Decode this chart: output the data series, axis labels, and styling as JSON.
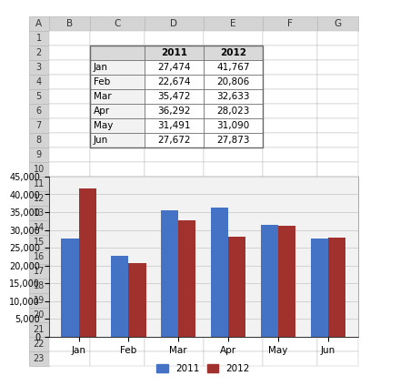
{
  "months": [
    "Jan",
    "Feb",
    "Mar",
    "Apr",
    "May",
    "Jun"
  ],
  "values_2011": [
    27474,
    22674,
    35472,
    36292,
    31491,
    27672
  ],
  "values_2012": [
    41767,
    20806,
    32633,
    28023,
    31090,
    27873
  ],
  "bar_color_2011": "#4472C4",
  "bar_color_2012": "#A0312D",
  "table_header_bg": "#D9D9D9",
  "table_border_color": "#808080",
  "grid_color": "#C0C0C0",
  "chart_bg": "#F2F2F2",
  "spreadsheet_bg": "#FFFFFF",
  "col_header_bg": "#D9D9D9",
  "row_header_bg": "#D9D9D9",
  "ylim": [
    0,
    45000
  ],
  "yticks": [
    0,
    5000,
    10000,
    15000,
    20000,
    25000,
    30000,
    35000,
    40000,
    45000
  ],
  "legend_labels": [
    "2011",
    "2012"
  ],
  "bar_width": 0.35,
  "col_labels": [
    "",
    "2011",
    "2012"
  ],
  "row_labels": [
    "A",
    "B",
    "C",
    "D",
    "E",
    "F",
    "G"
  ],
  "col_letters": [
    "A",
    "B",
    "C",
    "D",
    "E",
    "F",
    "G"
  ],
  "row_numbers": [
    "1",
    "2",
    "3",
    "4",
    "5",
    "6",
    "7",
    "8",
    "9",
    "10",
    "11",
    "12",
    "13",
    "14",
    "15",
    "16",
    "17",
    "18",
    "19",
    "20",
    "21",
    "22",
    "23"
  ]
}
